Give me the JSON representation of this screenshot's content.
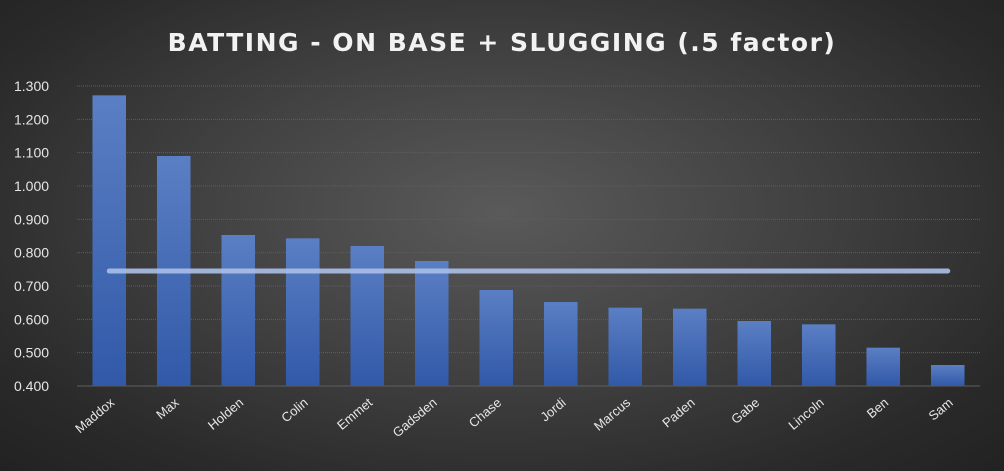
{
  "chart_data": {
    "type": "bar",
    "title": "BATTING - ON BASE + SLUGGING (.5 factor)",
    "xlabel": "",
    "ylabel": "",
    "categories": [
      "Maddox",
      "Max",
      "Holden",
      "Colin",
      "Emmet",
      "Gadsden",
      "Chase",
      "Jordi",
      "Marcus",
      "Paden",
      "Gabe",
      "Lincoln",
      "Ben",
      "Sam"
    ],
    "values": [
      1.272,
      1.09,
      0.853,
      0.843,
      0.82,
      0.775,
      0.688,
      0.652,
      0.635,
      0.632,
      0.595,
      0.585,
      0.515,
      0.463
    ],
    "reference_line": 0.745,
    "ylim": [
      0.4,
      1.3
    ],
    "yticks": [
      "0.400",
      "0.500",
      "0.600",
      "0.700",
      "0.800",
      "0.900",
      "1.000",
      "1.100",
      "1.200",
      "1.300"
    ],
    "grid": true,
    "legend": "none",
    "colors": {
      "bar_top": "#5b7fc4",
      "bar_bottom": "#3159a8",
      "reference_line": "#a9bde6",
      "gridline": "#5e5e5e",
      "text": "#e6e6e6"
    }
  }
}
